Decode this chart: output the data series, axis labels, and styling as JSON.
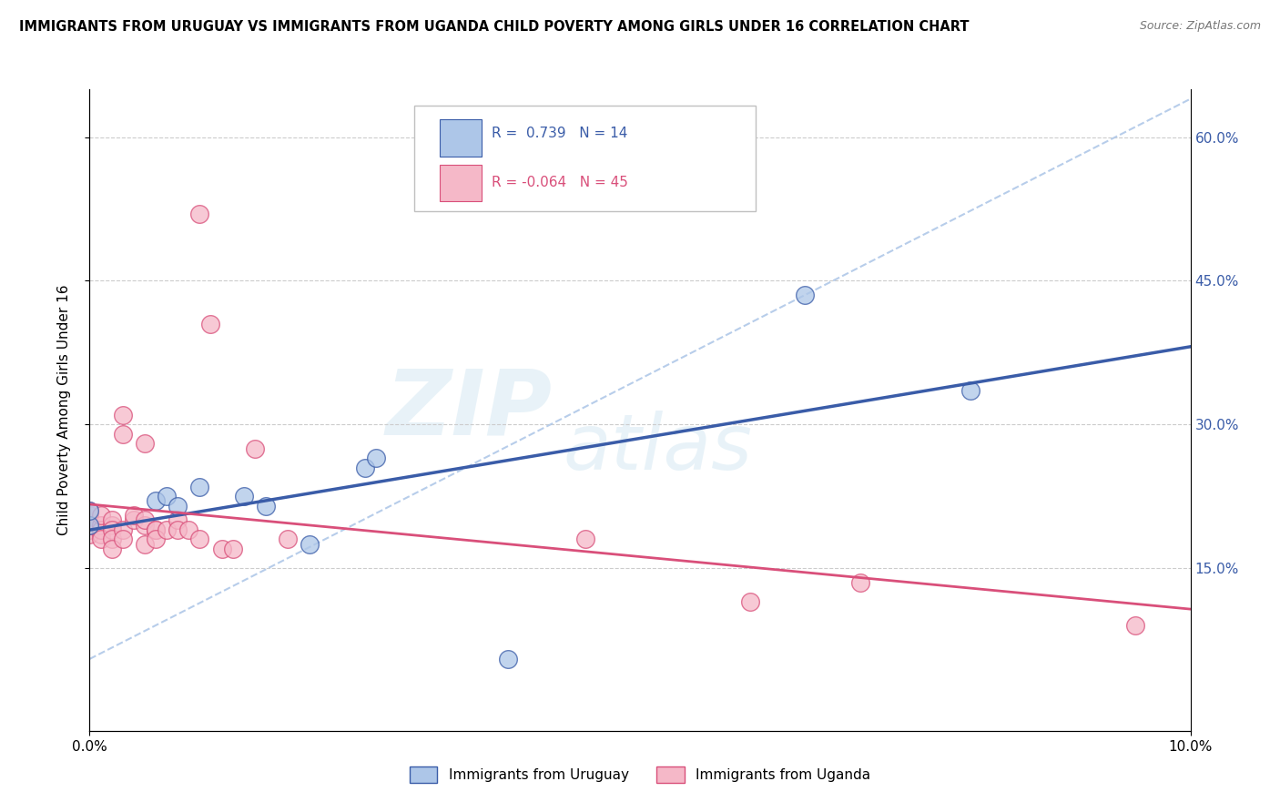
{
  "title": "IMMIGRANTS FROM URUGUAY VS IMMIGRANTS FROM UGANDA CHILD POVERTY AMONG GIRLS UNDER 16 CORRELATION CHART",
  "source": "Source: ZipAtlas.com",
  "ylabel": "Child Poverty Among Girls Under 16",
  "xlim": [
    0.0,
    0.1
  ],
  "ylim": [
    -0.02,
    0.65
  ],
  "y_tick_labels_right": [
    "15.0%",
    "30.0%",
    "45.0%",
    "60.0%"
  ],
  "y_tick_positions_right": [
    0.15,
    0.3,
    0.45,
    0.6
  ],
  "uruguay_fill_color": "#adc6e8",
  "uganda_fill_color": "#f5b8c8",
  "uruguay_line_color": "#3a5ca8",
  "uganda_line_color": "#d94f7a",
  "dash_line_color": "#b0c8e8",
  "R_uruguay": 0.739,
  "N_uruguay": 14,
  "R_uganda": -0.064,
  "N_uganda": 45,
  "uruguay_scatter": [
    [
      0.0,
      0.195
    ],
    [
      0.0,
      0.21
    ],
    [
      0.006,
      0.22
    ],
    [
      0.007,
      0.225
    ],
    [
      0.008,
      0.215
    ],
    [
      0.01,
      0.235
    ],
    [
      0.014,
      0.225
    ],
    [
      0.016,
      0.215
    ],
    [
      0.02,
      0.175
    ],
    [
      0.025,
      0.255
    ],
    [
      0.026,
      0.265
    ],
    [
      0.038,
      0.055
    ],
    [
      0.065,
      0.435
    ],
    [
      0.08,
      0.335
    ]
  ],
  "uganda_scatter": [
    [
      0.0,
      0.195
    ],
    [
      0.0,
      0.195
    ],
    [
      0.0,
      0.205
    ],
    [
      0.0,
      0.21
    ],
    [
      0.0,
      0.19
    ],
    [
      0.0,
      0.185
    ],
    [
      0.0,
      0.195
    ],
    [
      0.001,
      0.185
    ],
    [
      0.001,
      0.195
    ],
    [
      0.001,
      0.19
    ],
    [
      0.001,
      0.205
    ],
    [
      0.001,
      0.18
    ],
    [
      0.002,
      0.195
    ],
    [
      0.002,
      0.2
    ],
    [
      0.002,
      0.19
    ],
    [
      0.002,
      0.18
    ],
    [
      0.002,
      0.17
    ],
    [
      0.003,
      0.19
    ],
    [
      0.003,
      0.18
    ],
    [
      0.003,
      0.29
    ],
    [
      0.003,
      0.31
    ],
    [
      0.004,
      0.2
    ],
    [
      0.004,
      0.205
    ],
    [
      0.005,
      0.195
    ],
    [
      0.005,
      0.2
    ],
    [
      0.005,
      0.28
    ],
    [
      0.005,
      0.175
    ],
    [
      0.006,
      0.19
    ],
    [
      0.006,
      0.19
    ],
    [
      0.006,
      0.18
    ],
    [
      0.007,
      0.19
    ],
    [
      0.008,
      0.2
    ],
    [
      0.008,
      0.19
    ],
    [
      0.009,
      0.19
    ],
    [
      0.01,
      0.52
    ],
    [
      0.01,
      0.18
    ],
    [
      0.011,
      0.405
    ],
    [
      0.012,
      0.17
    ],
    [
      0.013,
      0.17
    ],
    [
      0.015,
      0.275
    ],
    [
      0.018,
      0.18
    ],
    [
      0.045,
      0.18
    ],
    [
      0.06,
      0.115
    ],
    [
      0.07,
      0.135
    ],
    [
      0.095,
      0.09
    ]
  ]
}
